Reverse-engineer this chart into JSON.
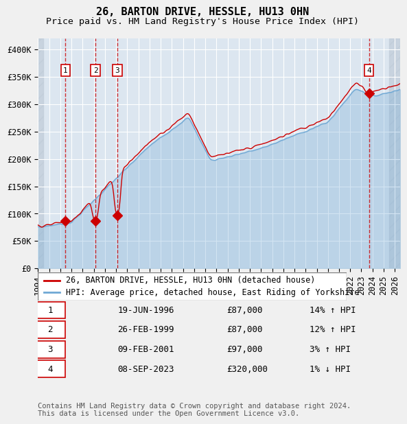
{
  "title": "26, BARTON DRIVE, HESSLE, HU13 0HN",
  "subtitle": "Price paid vs. HM Land Registry's House Price Index (HPI)",
  "xlabel": "",
  "ylabel": "",
  "ylim": [
    0,
    420000
  ],
  "yticks": [
    0,
    50000,
    100000,
    150000,
    200000,
    250000,
    300000,
    350000,
    400000
  ],
  "ytick_labels": [
    "£0",
    "£50K",
    "£100K",
    "£150K",
    "£200K",
    "£250K",
    "£300K",
    "£350K",
    "£400K"
  ],
  "xlim_start": 1994.0,
  "xlim_end": 2026.5,
  "background_color": "#dce6f0",
  "plot_bg_color": "#dce6f0",
  "hpi_color": "#6fa8d4",
  "price_color": "#cc0000",
  "sale_marker_color": "#cc0000",
  "dashed_line_color": "#cc0000",
  "grid_color": "#ffffff",
  "hatch_color": "#b8c8d8",
  "sale_points": [
    {
      "num": 1,
      "year": 1996.46,
      "price": 87000,
      "date": "19-JUN-1996",
      "hpi_pct": "14%",
      "direction": "↑"
    },
    {
      "num": 2,
      "year": 1999.15,
      "price": 87000,
      "date": "26-FEB-1999",
      "hpi_pct": "12%",
      "direction": "↑"
    },
    {
      "num": 3,
      "year": 2001.11,
      "price": 97000,
      "date": "09-FEB-2001",
      "hpi_pct": "3%",
      "direction": "↑"
    },
    {
      "num": 4,
      "year": 2023.68,
      "price": 320000,
      "date": "08-SEP-2023",
      "hpi_pct": "1%",
      "direction": "↓"
    }
  ],
  "legend_house_label": "26, BARTON DRIVE, HESSLE, HU13 0HN (detached house)",
  "legend_hpi_label": "HPI: Average price, detached house, East Riding of Yorkshire",
  "table_rows": [
    [
      "1",
      "19-JUN-1996",
      "£87,000",
      "14% ↑ HPI"
    ],
    [
      "2",
      "26-FEB-1999",
      "£87,000",
      "12% ↑ HPI"
    ],
    [
      "3",
      "09-FEB-2001",
      "£97,000",
      "3% ↑ HPI"
    ],
    [
      "4",
      "08-SEP-2023",
      "£320,000",
      "1% ↓ HPI"
    ]
  ],
  "footer": "Contains HM Land Registry data © Crown copyright and database right 2024.\nThis data is licensed under the Open Government Licence v3.0.",
  "title_fontsize": 11,
  "subtitle_fontsize": 9.5,
  "tick_fontsize": 8.5,
  "legend_fontsize": 8.5,
  "table_fontsize": 9,
  "footer_fontsize": 7.5
}
